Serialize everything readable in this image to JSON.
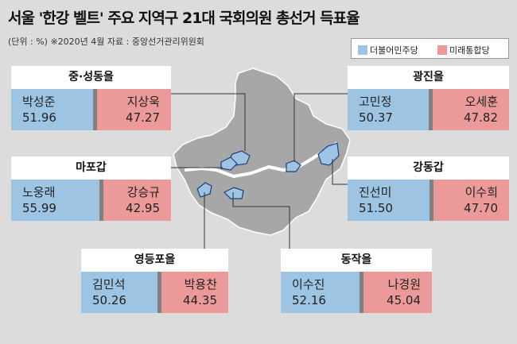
{
  "title": "서울 '한강 벨트' 주요 지역구 21대 국회의원 총선거 득표율",
  "subtitle": "(단위 : %)  ※2020년 4월  자료 : 중앙선거관리위원회",
  "colors": {
    "democratic": "#9ec4e4",
    "future_united": "#ec9a99",
    "separator": "#808080",
    "map": "#a7a7a7",
    "map_edge": "#ffffff",
    "highlight": "#9ec4e4"
  },
  "legend": [
    {
      "label": "더불어민주당",
      "color": "#9ec4e4"
    },
    {
      "label": "미래통합당",
      "color": "#ec9a99"
    }
  ],
  "chart_data": {
    "type": "bar",
    "unit": "%",
    "series": [
      {
        "name": "더불어민주당",
        "color": "#9ec4e4"
      },
      {
        "name": "미래통합당",
        "color": "#ec9a99"
      }
    ],
    "districts": [
      {
        "district": "중·성동을",
        "candidates": [
          {
            "party": "더불어민주당",
            "name": "박성준",
            "value": 51.96
          },
          {
            "party": "미래통합당",
            "name": "지상욱",
            "value": 47.27
          }
        ]
      },
      {
        "district": "광진을",
        "candidates": [
          {
            "party": "더불어민주당",
            "name": "고민정",
            "value": 50.37
          },
          {
            "party": "미래통합당",
            "name": "오세훈",
            "value": 47.82
          }
        ]
      },
      {
        "district": "마포갑",
        "candidates": [
          {
            "party": "더불어민주당",
            "name": "노웅래",
            "value": 55.99
          },
          {
            "party": "미래통합당",
            "name": "강승규",
            "value": 42.95
          }
        ]
      },
      {
        "district": "강동갑",
        "candidates": [
          {
            "party": "더불어민주당",
            "name": "진선미",
            "value": 51.5
          },
          {
            "party": "미래통합당",
            "name": "이수희",
            "value": 47.7
          }
        ]
      },
      {
        "district": "영등포을",
        "candidates": [
          {
            "party": "더불어민주당",
            "name": "김민석",
            "value": 50.26
          },
          {
            "party": "미래통합당",
            "name": "박용찬",
            "value": 44.35
          }
        ]
      },
      {
        "district": "동작을",
        "candidates": [
          {
            "party": "더불어민주당",
            "name": "이수진",
            "value": 52.16
          },
          {
            "party": "미래통합당",
            "name": "나경원",
            "value": 45.04
          }
        ]
      }
    ]
  }
}
